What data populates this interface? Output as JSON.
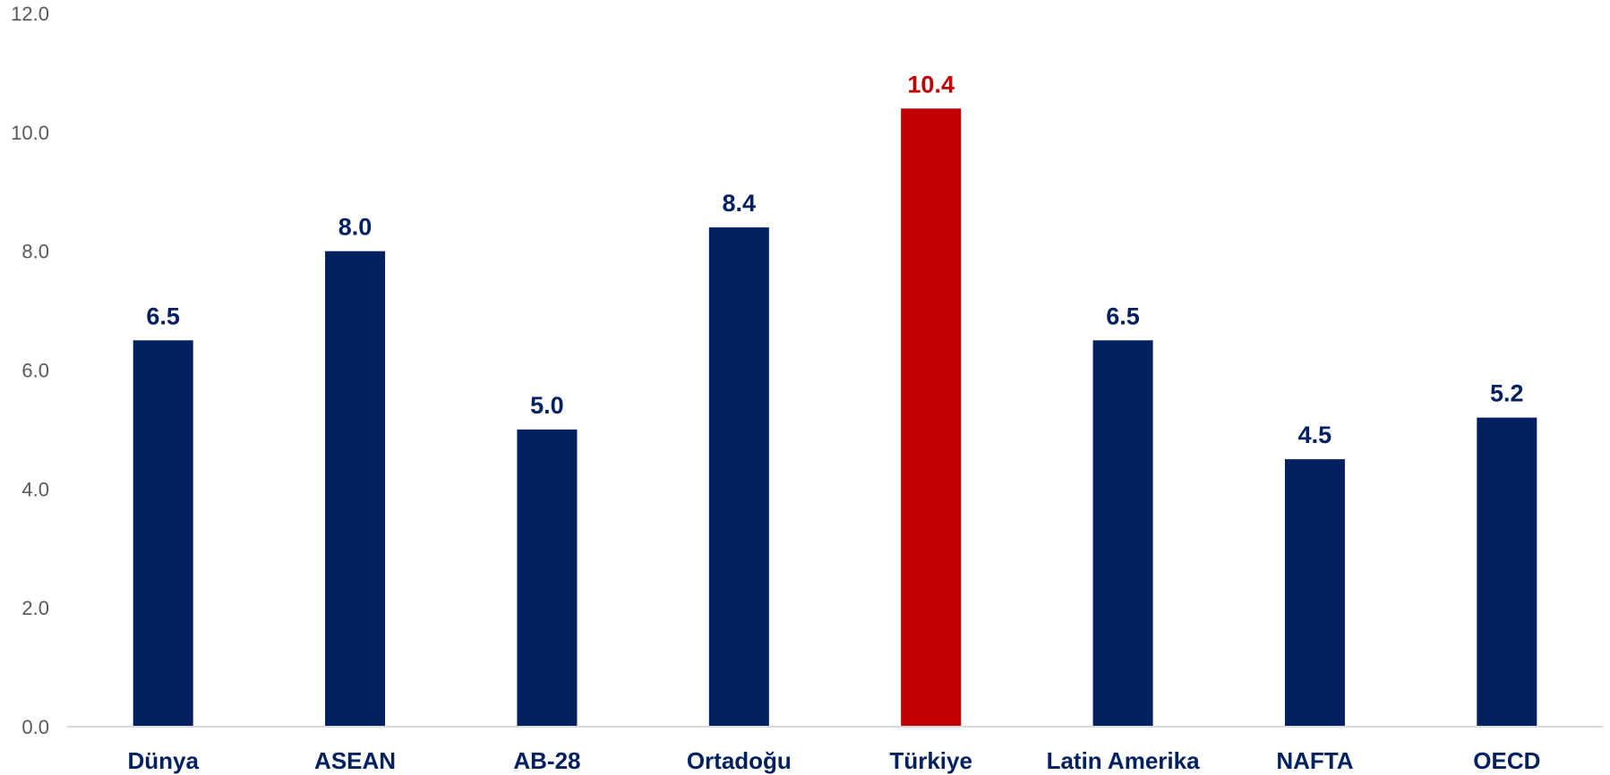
{
  "chart_data": {
    "type": "bar",
    "categories": [
      "Dünya",
      "ASEAN",
      "AB-28",
      "Ortadoğu",
      "Türkiye",
      "Latin Amerika",
      "NAFTA",
      "OECD"
    ],
    "values": [
      6.5,
      8.0,
      5.0,
      8.4,
      10.4,
      6.5,
      4.5,
      5.2
    ],
    "data_labels": [
      "6.5",
      "8.0",
      "5.0",
      "8.4",
      "10.4",
      "6.5",
      "4.5",
      "5.2"
    ],
    "highlight_index": 4,
    "title": "",
    "xlabel": "",
    "ylabel": "",
    "ylim": [
      0,
      12
    ],
    "yticks": [
      0,
      2,
      4,
      6,
      8,
      10,
      12
    ],
    "ytick_labels": [
      "0.0",
      "2.0",
      "4.0",
      "6.0",
      "8.0",
      "10.0",
      "12.0"
    ],
    "grid": false,
    "legend": "none",
    "colors": {
      "bar": "#002060",
      "highlight": "#C00000",
      "axis": "#D9D9D9",
      "tick_text": "#595959",
      "category_text": "#002060"
    }
  }
}
